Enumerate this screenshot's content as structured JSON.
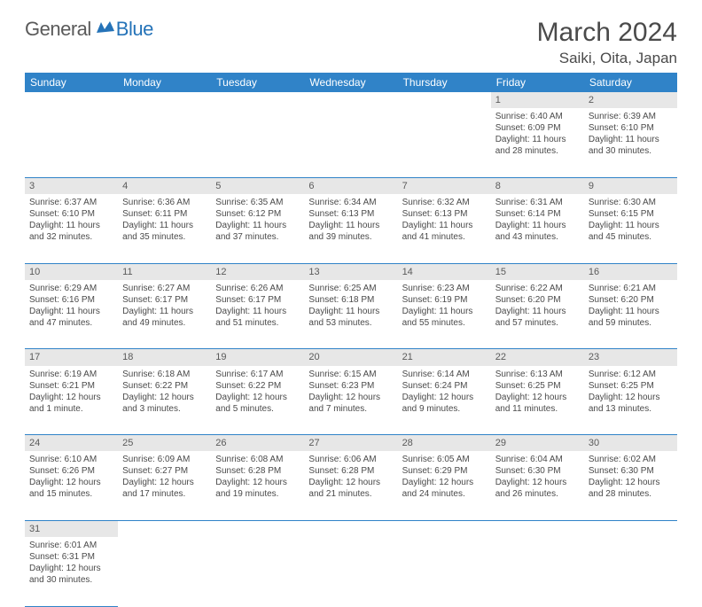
{
  "logo": {
    "text_general": "General",
    "text_blue": "Blue"
  },
  "header": {
    "month_title": "March 2024",
    "location": "Saiki, Oita, Japan"
  },
  "styling": {
    "header_bg": "#3083c8",
    "header_text": "#ffffff",
    "daynum_bg": "#e7e7e7",
    "border_color": "#3083c8",
    "body_text": "#4a4a4a",
    "page_bg": "#ffffff",
    "title_fontsize": 30,
    "location_fontsize": 17,
    "dayhead_fontsize": 12,
    "cell_fontsize": 10,
    "logo_accent": "#2573b8"
  },
  "day_headers": [
    "Sunday",
    "Monday",
    "Tuesday",
    "Wednesday",
    "Thursday",
    "Friday",
    "Saturday"
  ],
  "weeks": [
    [
      null,
      null,
      null,
      null,
      null,
      {
        "n": "1",
        "sr": "Sunrise: 6:40 AM",
        "ss": "Sunset: 6:09 PM",
        "d1": "Daylight: 11 hours",
        "d2": "and 28 minutes."
      },
      {
        "n": "2",
        "sr": "Sunrise: 6:39 AM",
        "ss": "Sunset: 6:10 PM",
        "d1": "Daylight: 11 hours",
        "d2": "and 30 minutes."
      }
    ],
    [
      {
        "n": "3",
        "sr": "Sunrise: 6:37 AM",
        "ss": "Sunset: 6:10 PM",
        "d1": "Daylight: 11 hours",
        "d2": "and 32 minutes."
      },
      {
        "n": "4",
        "sr": "Sunrise: 6:36 AM",
        "ss": "Sunset: 6:11 PM",
        "d1": "Daylight: 11 hours",
        "d2": "and 35 minutes."
      },
      {
        "n": "5",
        "sr": "Sunrise: 6:35 AM",
        "ss": "Sunset: 6:12 PM",
        "d1": "Daylight: 11 hours",
        "d2": "and 37 minutes."
      },
      {
        "n": "6",
        "sr": "Sunrise: 6:34 AM",
        "ss": "Sunset: 6:13 PM",
        "d1": "Daylight: 11 hours",
        "d2": "and 39 minutes."
      },
      {
        "n": "7",
        "sr": "Sunrise: 6:32 AM",
        "ss": "Sunset: 6:13 PM",
        "d1": "Daylight: 11 hours",
        "d2": "and 41 minutes."
      },
      {
        "n": "8",
        "sr": "Sunrise: 6:31 AM",
        "ss": "Sunset: 6:14 PM",
        "d1": "Daylight: 11 hours",
        "d2": "and 43 minutes."
      },
      {
        "n": "9",
        "sr": "Sunrise: 6:30 AM",
        "ss": "Sunset: 6:15 PM",
        "d1": "Daylight: 11 hours",
        "d2": "and 45 minutes."
      }
    ],
    [
      {
        "n": "10",
        "sr": "Sunrise: 6:29 AM",
        "ss": "Sunset: 6:16 PM",
        "d1": "Daylight: 11 hours",
        "d2": "and 47 minutes."
      },
      {
        "n": "11",
        "sr": "Sunrise: 6:27 AM",
        "ss": "Sunset: 6:17 PM",
        "d1": "Daylight: 11 hours",
        "d2": "and 49 minutes."
      },
      {
        "n": "12",
        "sr": "Sunrise: 6:26 AM",
        "ss": "Sunset: 6:17 PM",
        "d1": "Daylight: 11 hours",
        "d2": "and 51 minutes."
      },
      {
        "n": "13",
        "sr": "Sunrise: 6:25 AM",
        "ss": "Sunset: 6:18 PM",
        "d1": "Daylight: 11 hours",
        "d2": "and 53 minutes."
      },
      {
        "n": "14",
        "sr": "Sunrise: 6:23 AM",
        "ss": "Sunset: 6:19 PM",
        "d1": "Daylight: 11 hours",
        "d2": "and 55 minutes."
      },
      {
        "n": "15",
        "sr": "Sunrise: 6:22 AM",
        "ss": "Sunset: 6:20 PM",
        "d1": "Daylight: 11 hours",
        "d2": "and 57 minutes."
      },
      {
        "n": "16",
        "sr": "Sunrise: 6:21 AM",
        "ss": "Sunset: 6:20 PM",
        "d1": "Daylight: 11 hours",
        "d2": "and 59 minutes."
      }
    ],
    [
      {
        "n": "17",
        "sr": "Sunrise: 6:19 AM",
        "ss": "Sunset: 6:21 PM",
        "d1": "Daylight: 12 hours",
        "d2": "and 1 minute."
      },
      {
        "n": "18",
        "sr": "Sunrise: 6:18 AM",
        "ss": "Sunset: 6:22 PM",
        "d1": "Daylight: 12 hours",
        "d2": "and 3 minutes."
      },
      {
        "n": "19",
        "sr": "Sunrise: 6:17 AM",
        "ss": "Sunset: 6:22 PM",
        "d1": "Daylight: 12 hours",
        "d2": "and 5 minutes."
      },
      {
        "n": "20",
        "sr": "Sunrise: 6:15 AM",
        "ss": "Sunset: 6:23 PM",
        "d1": "Daylight: 12 hours",
        "d2": "and 7 minutes."
      },
      {
        "n": "21",
        "sr": "Sunrise: 6:14 AM",
        "ss": "Sunset: 6:24 PM",
        "d1": "Daylight: 12 hours",
        "d2": "and 9 minutes."
      },
      {
        "n": "22",
        "sr": "Sunrise: 6:13 AM",
        "ss": "Sunset: 6:25 PM",
        "d1": "Daylight: 12 hours",
        "d2": "and 11 minutes."
      },
      {
        "n": "23",
        "sr": "Sunrise: 6:12 AM",
        "ss": "Sunset: 6:25 PM",
        "d1": "Daylight: 12 hours",
        "d2": "and 13 minutes."
      }
    ],
    [
      {
        "n": "24",
        "sr": "Sunrise: 6:10 AM",
        "ss": "Sunset: 6:26 PM",
        "d1": "Daylight: 12 hours",
        "d2": "and 15 minutes."
      },
      {
        "n": "25",
        "sr": "Sunrise: 6:09 AM",
        "ss": "Sunset: 6:27 PM",
        "d1": "Daylight: 12 hours",
        "d2": "and 17 minutes."
      },
      {
        "n": "26",
        "sr": "Sunrise: 6:08 AM",
        "ss": "Sunset: 6:28 PM",
        "d1": "Daylight: 12 hours",
        "d2": "and 19 minutes."
      },
      {
        "n": "27",
        "sr": "Sunrise: 6:06 AM",
        "ss": "Sunset: 6:28 PM",
        "d1": "Daylight: 12 hours",
        "d2": "and 21 minutes."
      },
      {
        "n": "28",
        "sr": "Sunrise: 6:05 AM",
        "ss": "Sunset: 6:29 PM",
        "d1": "Daylight: 12 hours",
        "d2": "and 24 minutes."
      },
      {
        "n": "29",
        "sr": "Sunrise: 6:04 AM",
        "ss": "Sunset: 6:30 PM",
        "d1": "Daylight: 12 hours",
        "d2": "and 26 minutes."
      },
      {
        "n": "30",
        "sr": "Sunrise: 6:02 AM",
        "ss": "Sunset: 6:30 PM",
        "d1": "Daylight: 12 hours",
        "d2": "and 28 minutes."
      }
    ],
    [
      {
        "n": "31",
        "sr": "Sunrise: 6:01 AM",
        "ss": "Sunset: 6:31 PM",
        "d1": "Daylight: 12 hours",
        "d2": "and 30 minutes."
      },
      null,
      null,
      null,
      null,
      null,
      null
    ]
  ]
}
